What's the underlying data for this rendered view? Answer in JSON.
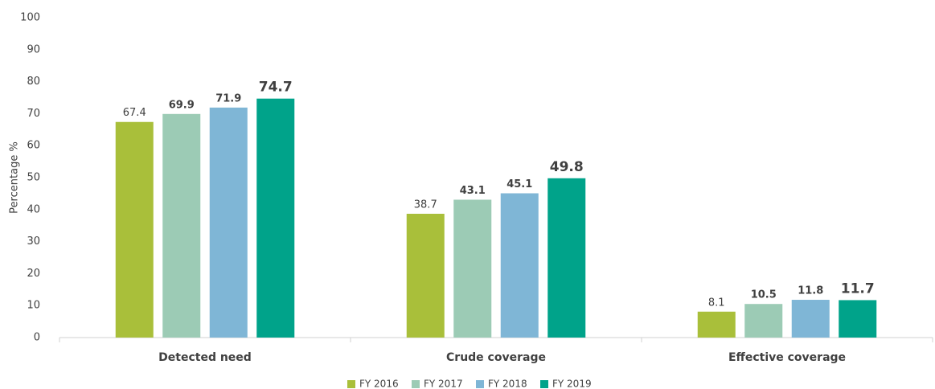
{
  "chart_data": {
    "type": "bar",
    "y_label": "Percentage %",
    "categories": [
      "Detected need",
      "Crude coverage",
      "Effective coverage"
    ],
    "series": [
      {
        "name": "FY 2016",
        "color": "#a9bf3a",
        "values": [
          67.4,
          38.7,
          8.1
        ]
      },
      {
        "name": "FY 2017",
        "color": "#9ccbb5",
        "values": [
          69.9,
          43.1,
          10.5
        ]
      },
      {
        "name": "FY 2018",
        "color": "#7fb6d6",
        "values": [
          71.9,
          45.1,
          11.8
        ]
      },
      {
        "name": "FY 2019",
        "color": "#00a38a",
        "values": [
          74.7,
          49.8,
          11.7
        ]
      }
    ],
    "ylim": [
      0,
      100
    ],
    "yticks": [
      0,
      10,
      20,
      30,
      40,
      50,
      60,
      70,
      80,
      90,
      100
    ],
    "grid": false,
    "legend": "bottom"
  }
}
